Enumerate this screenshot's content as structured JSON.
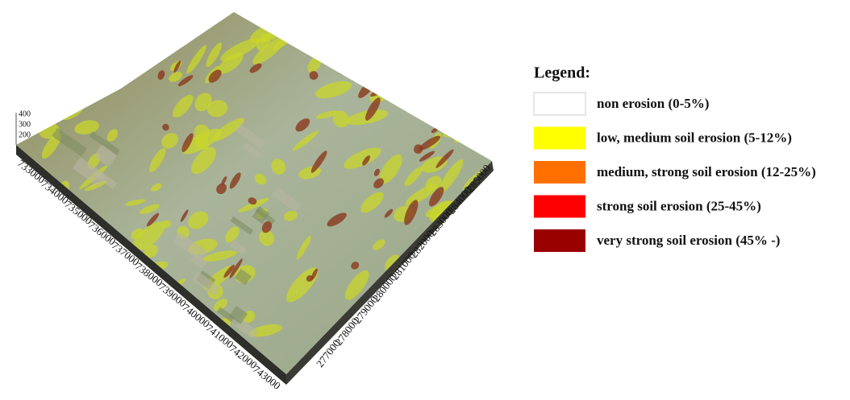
{
  "legend": {
    "title": "Legend:",
    "items": [
      {
        "label": "non erosion (0-5%)",
        "color": "#ffffff"
      },
      {
        "label": "low, medium soil erosion (5-12%)",
        "color": "#ffff00"
      },
      {
        "label": "medium, strong soil erosion (12-25%)",
        "color": "#ff7000"
      },
      {
        "label": "strong soil erosion (25-45%)",
        "color": "#ff0000"
      },
      {
        "label": "very strong soil erosion (45% -)",
        "color": "#990000"
      }
    ]
  },
  "axes": {
    "vertical": {
      "ticks": [
        400,
        300,
        200
      ]
    },
    "left": {
      "ticks": [
        733000,
        734000,
        735000,
        736000,
        737000,
        738000,
        739000,
        740000,
        741000,
        742000,
        743000
      ]
    },
    "right": {
      "ticks": [
        277000,
        278000,
        279000,
        280000,
        281000,
        282000,
        283000,
        284000,
        285000
      ]
    }
  }
}
